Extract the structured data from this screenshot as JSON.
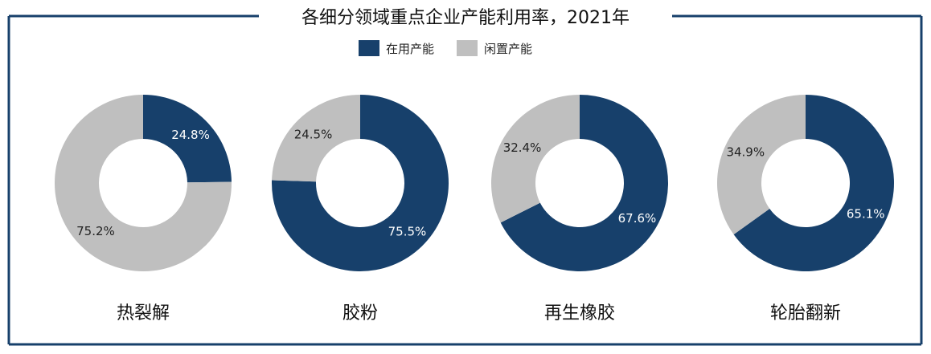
{
  "chart_data": {
    "type": "pie",
    "title": "各细分领域重点企业产能利用率，2021年",
    "legend": {
      "placement": "top-center",
      "entries": [
        {
          "label": "在用产能",
          "color": "#17406b"
        },
        {
          "label": "闲置产能",
          "color": "#bfbfbf"
        }
      ]
    },
    "series_colors": {
      "used": "#17406b",
      "idle": "#bfbfbf"
    },
    "frame_color": "#17406b",
    "charts": [
      {
        "category": "热裂解",
        "used": 24.8,
        "idle": 75.2,
        "used_label": "24.8%",
        "idle_label": "75.2%"
      },
      {
        "category": "胶粉",
        "used": 75.5,
        "idle": 24.5,
        "used_label": "75.5%",
        "idle_label": "24.5%"
      },
      {
        "category": "再生橡胶",
        "used": 67.6,
        "idle": 32.4,
        "used_label": "67.6%",
        "idle_label": "32.4%"
      },
      {
        "category": "轮胎翻新",
        "used": 65.1,
        "idle": 34.9,
        "used_label": "65.1%",
        "idle_label": "34.9%"
      }
    ]
  }
}
